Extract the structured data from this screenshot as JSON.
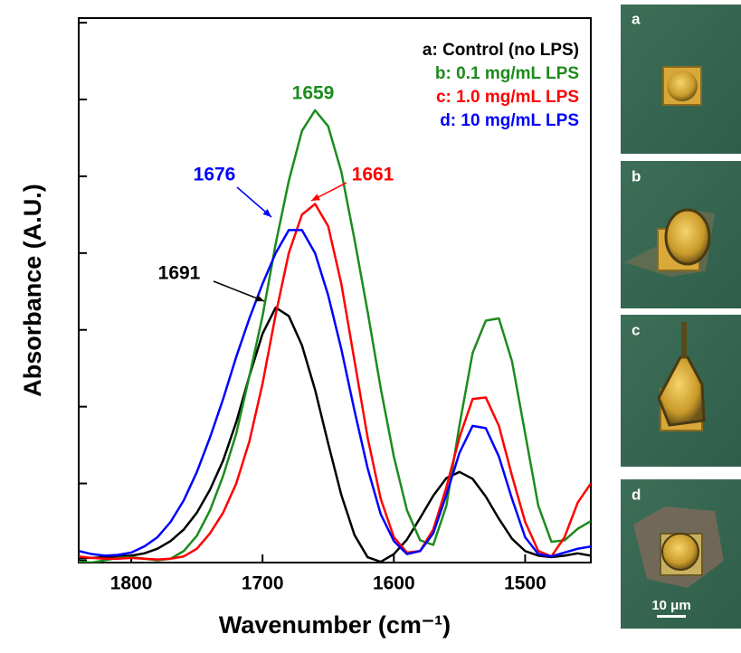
{
  "chart_data": {
    "type": "line",
    "y_label": "Absorbance (A.U.)",
    "x_label": "Wavenumber (cm⁻¹)",
    "x": [
      1840,
      1830,
      1820,
      1810,
      1800,
      1790,
      1780,
      1770,
      1760,
      1750,
      1740,
      1730,
      1720,
      1710,
      1700,
      1690,
      1680,
      1670,
      1660,
      1650,
      1640,
      1630,
      1620,
      1610,
      1600,
      1590,
      1580,
      1570,
      1560,
      1550,
      1540,
      1530,
      1520,
      1510,
      1500,
      1490,
      1480,
      1470,
      1460,
      1450
    ],
    "series": [
      {
        "name": "a: Control (no LPS)",
        "color": "#000000",
        "values": [
          0.03,
          0.03,
          0.04,
          0.05,
          0.06,
          0.09,
          0.15,
          0.25,
          0.4,
          0.62,
          0.92,
          1.3,
          1.8,
          2.4,
          2.95,
          3.29,
          3.18,
          2.8,
          2.22,
          1.52,
          0.85,
          0.33,
          0.04,
          -0.02,
          0.08,
          0.27,
          0.55,
          0.84,
          1.07,
          1.15,
          1.06,
          0.83,
          0.54,
          0.28,
          0.12,
          0.06,
          0.04,
          0.06,
          0.09,
          0.06
        ]
      },
      {
        "name": "b: 0.1 mg/mL LPS",
        "color": "#1c8c1c",
        "values": [
          -0.02,
          -0.03,
          0.0,
          0.03,
          0.04,
          0.02,
          0.0,
          0.02,
          0.12,
          0.32,
          0.65,
          1.1,
          1.65,
          2.4,
          3.18,
          4.12,
          4.94,
          5.59,
          5.86,
          5.65,
          5.06,
          4.18,
          3.24,
          2.24,
          1.35,
          0.65,
          0.26,
          0.2,
          0.71,
          1.76,
          2.7,
          3.12,
          3.15,
          2.59,
          1.65,
          0.71,
          0.24,
          0.26,
          0.41,
          0.51
        ]
      },
      {
        "name": "c: 1.0 mg/mL LPS",
        "color": "#ff0000",
        "values": [
          0.05,
          0.03,
          0.02,
          0.02,
          0.03,
          0.02,
          0.01,
          0.02,
          0.05,
          0.15,
          0.35,
          0.62,
          1.0,
          1.55,
          2.3,
          3.2,
          4.0,
          4.5,
          4.64,
          4.35,
          3.6,
          2.6,
          1.6,
          0.8,
          0.3,
          0.1,
          0.12,
          0.4,
          0.95,
          1.6,
          2.1,
          2.12,
          1.75,
          1.1,
          0.5,
          0.12,
          0.05,
          0.3,
          0.75,
          1.0
        ]
      },
      {
        "name": "d: 10 mg/mL LPS",
        "color": "#0000ff",
        "values": [
          0.12,
          0.08,
          0.06,
          0.07,
          0.1,
          0.18,
          0.3,
          0.5,
          0.78,
          1.15,
          1.6,
          2.1,
          2.65,
          3.15,
          3.6,
          4.0,
          4.3,
          4.3,
          4.0,
          3.45,
          2.75,
          1.95,
          1.2,
          0.6,
          0.25,
          0.08,
          0.12,
          0.35,
          0.85,
          1.4,
          1.75,
          1.72,
          1.35,
          0.8,
          0.3,
          0.08,
          0.05,
          0.1,
          0.15,
          0.18
        ]
      }
    ],
    "annotations": [
      {
        "text": "1659",
        "color": "#1c8c1c"
      },
      {
        "text": "1661",
        "color": "#ff0000"
      },
      {
        "text": "1676",
        "color": "#0000ff"
      },
      {
        "text": "1691",
        "color": "#000000"
      }
    ],
    "xlim": [
      1840,
      1450
    ],
    "ylim": [
      -0.03,
      7.06
    ],
    "xticks": [
      1800,
      1700,
      1600,
      1500
    ],
    "yticks": [
      0,
      1,
      2,
      3,
      4,
      5,
      6,
      7
    ],
    "legend": "upper right"
  },
  "micrographs": {
    "panels": [
      "a",
      "b",
      "c",
      "d"
    ],
    "scale_bar": "10 μm"
  }
}
